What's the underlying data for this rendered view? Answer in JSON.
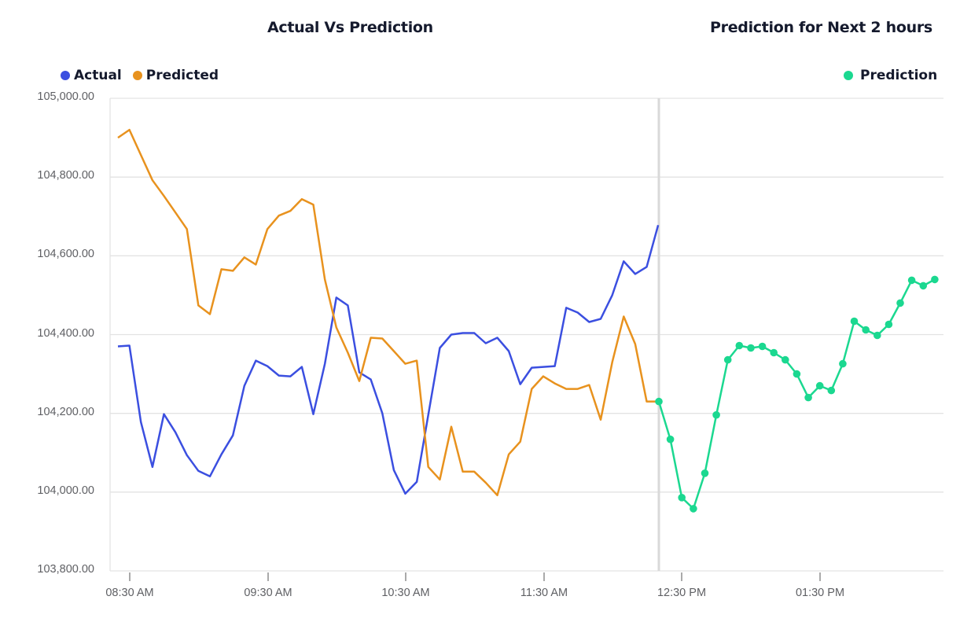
{
  "titles": {
    "left": "Actual Vs Prediction",
    "right": "Prediction for Next 2 hours"
  },
  "legend": {
    "actual": "Actual",
    "predicted": "Predicted",
    "prediction": "Prediction"
  },
  "colors": {
    "actual": "#3b4fe0",
    "predicted": "#e8921e",
    "prediction": "#1bd890",
    "divider": "#d9d9d9",
    "grid": "#e3e3e3"
  },
  "y_axis": {
    "ticks": [
      "105,000.00",
      "104,800.00",
      "104,600.00",
      "104,400.00",
      "104,200.00",
      "104,000.00",
      "103,800.00"
    ]
  },
  "x_axis": {
    "ticks": [
      "08:30 AM",
      "09:30 AM",
      "10:30 AM",
      "11:30 AM",
      "12:30 PM",
      "01:30 PM"
    ]
  },
  "chart_data": [
    {
      "type": "line",
      "title": "Actual Vs Prediction",
      "xlabel": "",
      "ylabel": "",
      "ylim": [
        103800,
        105000
      ],
      "grid": true,
      "legend_position": "top-left",
      "x_tick_labels": [
        "08:30 AM",
        "09:30 AM",
        "10:30 AM",
        "11:30 AM"
      ],
      "x": [
        "08:25",
        "08:30",
        "08:35",
        "08:40",
        "08:45",
        "08:50",
        "08:55",
        "09:00",
        "09:05",
        "09:10",
        "09:15",
        "09:20",
        "09:25",
        "09:30",
        "09:35",
        "09:40",
        "09:45",
        "09:50",
        "09:55",
        "10:00",
        "10:05",
        "10:10",
        "10:15",
        "10:20",
        "10:25",
        "10:30",
        "10:35",
        "10:40",
        "10:45",
        "10:50",
        "10:55",
        "11:00",
        "11:05",
        "11:10",
        "11:15",
        "11:20",
        "11:25",
        "11:30",
        "11:35",
        "11:40",
        "11:45",
        "11:50",
        "11:55",
        "12:00",
        "12:05",
        "12:10",
        "12:15",
        "12:20"
      ],
      "series": [
        {
          "name": "Actual",
          "color": "#3b4fe0",
          "values": [
            104370,
            104372,
            104178,
            104064,
            104198,
            104152,
            104094,
            104054,
            104040,
            104096,
            104144,
            104270,
            104334,
            104320,
            104296,
            104294,
            104318,
            104198,
            104326,
            104494,
            104474,
            104304,
            104286,
            104200,
            104056,
            103996,
            104026,
            104196,
            104366,
            104400,
            104404,
            104404,
            104378,
            104392,
            104358,
            104274,
            104316,
            104318,
            104320,
            104468,
            104456,
            104432,
            104440,
            104500,
            104586,
            104554,
            104572,
            104678
          ]
        },
        {
          "name": "Predicted",
          "color": "#e8921e",
          "values": [
            104900,
            104920,
            104856,
            104792,
            104752,
            104710,
            104668,
            104474,
            104452,
            104566,
            104562,
            104596,
            104578,
            104668,
            104702,
            104714,
            104744,
            104730,
            104540,
            104418,
            104354,
            104282,
            104392,
            104390,
            104358,
            104326,
            104334,
            104064,
            104032,
            104166,
            104052,
            104052,
            104024,
            103992,
            104096,
            104128,
            104262,
            104294,
            104276,
            104262,
            104262,
            104272,
            104184,
            104330,
            104446,
            104376,
            104230,
            104230
          ]
        }
      ]
    },
    {
      "type": "line",
      "title": "Prediction for Next 2 hours",
      "xlabel": "",
      "ylabel": "",
      "ylim": [
        103800,
        105000
      ],
      "grid": true,
      "legend_position": "top-right",
      "x_tick_labels": [
        "12:30 PM",
        "01:30 PM"
      ],
      "x": [
        "12:20",
        "12:25",
        "12:30",
        "12:35",
        "12:40",
        "12:45",
        "12:50",
        "12:55",
        "13:00",
        "13:05",
        "13:10",
        "13:15",
        "13:20",
        "13:25",
        "13:30",
        "13:35",
        "13:40",
        "13:45",
        "13:50",
        "13:55",
        "14:00",
        "14:05",
        "14:10",
        "14:15",
        "14:20"
      ],
      "series": [
        {
          "name": "Prediction",
          "color": "#1bd890",
          "markers": true,
          "values": [
            104230,
            104134,
            103986,
            103958,
            104048,
            104196,
            104336,
            104372,
            104366,
            104370,
            104354,
            104336,
            104300,
            104240,
            104270,
            104258,
            104326,
            104434,
            104412,
            104398,
            104426,
            104480,
            104538,
            104524,
            104540
          ]
        }
      ]
    }
  ]
}
